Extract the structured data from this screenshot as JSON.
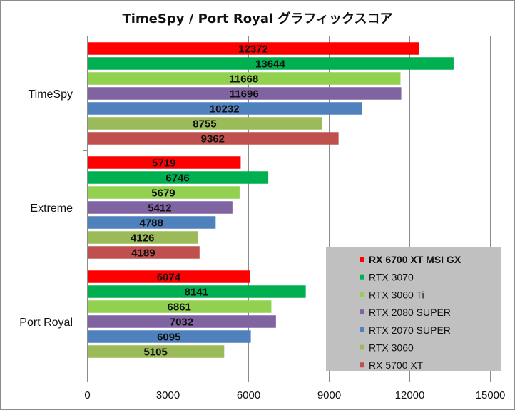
{
  "chart_data": {
    "type": "bar",
    "orientation": "horizontal",
    "title": "TimeSpy / Port Royal グラフィックスコア",
    "categories": [
      "TimeSpy",
      "Extreme",
      "Port Royal"
    ],
    "series": [
      {
        "name": "RX 6700 XT MSI GX",
        "color": "#ff0000",
        "values": [
          12372,
          5719,
          6074
        ],
        "legend_bold": true
      },
      {
        "name": "RTX 3070",
        "color": "#00b050",
        "values": [
          13644,
          6746,
          8141
        ]
      },
      {
        "name": "RTX 3060 Ti",
        "color": "#92d050",
        "values": [
          11668,
          5679,
          6861
        ]
      },
      {
        "name": "RTX 2080 SUPER",
        "color": "#8064a2",
        "values": [
          11696,
          5412,
          7032
        ]
      },
      {
        "name": "RTX 2070 SUPER",
        "color": "#4f81bd",
        "values": [
          10232,
          4788,
          6095
        ]
      },
      {
        "name": "RTX 3060",
        "color": "#9bbb59",
        "values": [
          8755,
          4126,
          5105
        ]
      },
      {
        "name": "RX 5700 XT",
        "color": "#c0504d",
        "values": [
          9362,
          4189,
          null
        ]
      }
    ],
    "xlim": [
      0,
      15000
    ],
    "xticks": [
      "0",
      "3000",
      "6000",
      "9000",
      "12000",
      "15000"
    ],
    "xlabel": "",
    "ylabel": "",
    "grid": "vertical",
    "legend_position": "bottom-right",
    "legend_background": "#c0c0c0",
    "data_labels": true
  }
}
